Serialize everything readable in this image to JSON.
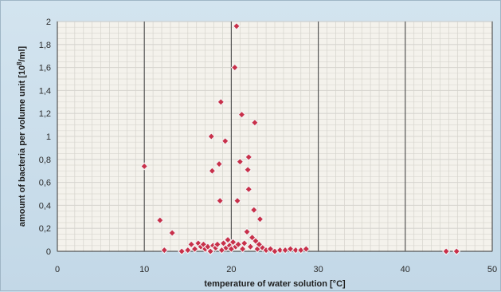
{
  "chart_data": {
    "type": "scatter",
    "title": "",
    "xlabel": "temperature of water solution [°C]",
    "ylabel_parts": [
      "amount of bacteria per volume unit [10",
      "8",
      "/ml]"
    ],
    "xlim": [
      0,
      50
    ],
    "ylim": [
      0,
      2
    ],
    "x_ticks": [
      "0",
      "10",
      "20",
      "30",
      "40",
      "50"
    ],
    "y_ticks": [
      "0",
      "0,2",
      "0,4",
      "0,6",
      "0,8",
      "1",
      "1,2",
      "1,4",
      "1,6",
      "1,8",
      "2"
    ],
    "grid": true,
    "legend": "none",
    "colors": {
      "marker_fill": "#c8304a",
      "marker_edge": "#f3f3f3",
      "plot_bg": "#f4f2ec",
      "major_grid": "#555555",
      "minor_grid": "#c9c9c9"
    },
    "points": [
      [
        10,
        0.74
      ],
      [
        11.8,
        0.27
      ],
      [
        12.3,
        0.01
      ],
      [
        13.2,
        0.16
      ],
      [
        14.3,
        0.0
      ],
      [
        15.0,
        0.01
      ],
      [
        15.4,
        0.06
      ],
      [
        15.8,
        0.02
      ],
      [
        16.2,
        0.07
      ],
      [
        16.5,
        0.04
      ],
      [
        16.8,
        0.06
      ],
      [
        17.0,
        0.02
      ],
      [
        17.3,
        0.04
      ],
      [
        17.6,
        0.0
      ],
      [
        17.7,
        1.0
      ],
      [
        17.8,
        0.7
      ],
      [
        17.9,
        0.05
      ],
      [
        18.2,
        0.03
      ],
      [
        18.4,
        0.06
      ],
      [
        18.6,
        0.76
      ],
      [
        18.7,
        0.44
      ],
      [
        18.8,
        1.3
      ],
      [
        18.9,
        0.01
      ],
      [
        19.1,
        0.07
      ],
      [
        19.3,
        0.96
      ],
      [
        19.4,
        0.03
      ],
      [
        19.6,
        0.1
      ],
      [
        19.8,
        0.05
      ],
      [
        20.0,
        0.02
      ],
      [
        20.2,
        0.08
      ],
      [
        20.4,
        1.6
      ],
      [
        20.5,
        0.04
      ],
      [
        20.6,
        1.96
      ],
      [
        20.7,
        0.44
      ],
      [
        20.8,
        0.06
      ],
      [
        21.0,
        0.78
      ],
      [
        21.2,
        1.19
      ],
      [
        21.3,
        0.02
      ],
      [
        21.5,
        0.07
      ],
      [
        21.8,
        0.17
      ],
      [
        21.9,
        0.71
      ],
      [
        22.0,
        0.82
      ],
      [
        22.0,
        0.54
      ],
      [
        22.2,
        0.04
      ],
      [
        22.4,
        0.12
      ],
      [
        22.6,
        0.36
      ],
      [
        22.7,
        1.12
      ],
      [
        22.8,
        0.09
      ],
      [
        23.0,
        0.02
      ],
      [
        23.2,
        0.06
      ],
      [
        23.3,
        0.28
      ],
      [
        23.6,
        0.03
      ],
      [
        24.0,
        0.01
      ],
      [
        24.5,
        0.02
      ],
      [
        25.0,
        0.0
      ],
      [
        25.6,
        0.01
      ],
      [
        26.2,
        0.01
      ],
      [
        26.8,
        0.02
      ],
      [
        27.4,
        0.01
      ],
      [
        28.0,
        0.01
      ],
      [
        28.6,
        0.02
      ],
      [
        44.7,
        0.0
      ],
      [
        45.9,
        0.0
      ]
    ]
  }
}
